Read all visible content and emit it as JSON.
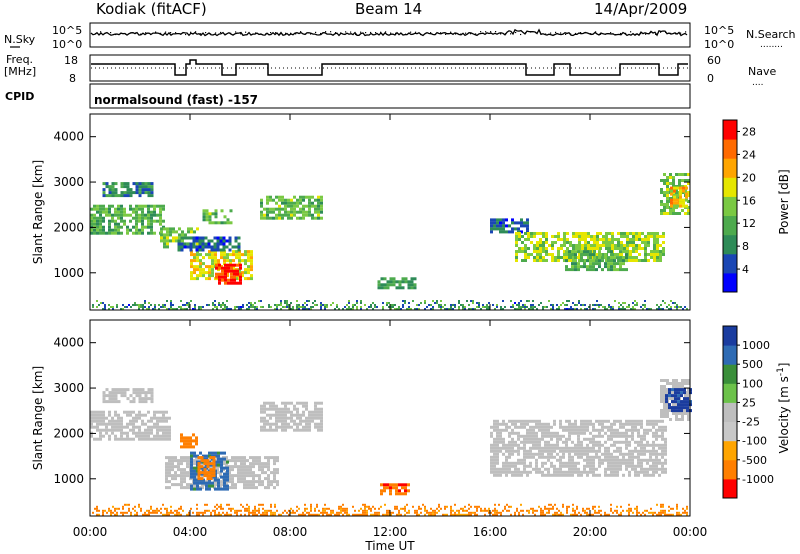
{
  "header": {
    "station": "Kodiak (fitACF)",
    "beam": "Beam 14",
    "date": "14/Apr/2009"
  },
  "strip_labels": {
    "nsky": "N.Sky",
    "nsearch": "N.Search",
    "nsearch_dots": "........",
    "freq_line1": "Freq.",
    "freq_line2": "[MHz]",
    "nave": "Nave",
    "nave_dots": "....",
    "cpid": "CPID",
    "cpid_value": "normalsound (fast) -157",
    "noise_ticks": [
      "10^5",
      "10^0"
    ],
    "noise_ticks_right": [
      "10^5",
      "10^0"
    ],
    "freq_ticks": [
      "18",
      "8"
    ],
    "nave_ticks": [
      "60",
      "0"
    ]
  },
  "colors": {
    "power_scale": [
      "#0000ff",
      "#1a46b4",
      "#2e8b57",
      "#4daa4d",
      "#7ac943",
      "#e6e600",
      "#ffa500",
      "#ff6a00",
      "#ff0000"
    ],
    "velocity_scale": [
      "#1a3c9f",
      "#2e6bb4",
      "#3a8f3a",
      "#6cc24a",
      "#bebebe",
      "#c8c8c8",
      "#ffa500",
      "#ff7f00",
      "#ff0000"
    ],
    "ground_scatter": "#bebebe"
  },
  "chart_data": [
    {
      "type": "heatmap",
      "name": "power",
      "xlabel": "Time UT",
      "ylabel": "Slant Range [km]",
      "x_ticks": [
        "00:00",
        "04:00",
        "08:00",
        "12:00",
        "16:00",
        "20:00",
        "00:00"
      ],
      "y_ticks": [
        "1000",
        "2000",
        "3000",
        "4000"
      ],
      "xlim": [
        0,
        24
      ],
      "ylim": [
        180,
        4500
      ],
      "colorbar": {
        "label": "Power [dB]",
        "ticks": [
          "4",
          "8",
          "12",
          "16",
          "20",
          "24",
          "28"
        ],
        "range": [
          0,
          30
        ]
      },
      "regions": [
        {
          "t0": 0.0,
          "t1": 3.0,
          "r0": 1900,
          "r1": 2500,
          "value": 12
        },
        {
          "t0": 0.5,
          "t1": 2.5,
          "r0": 2700,
          "r1": 3000,
          "value": 8
        },
        {
          "t0": 2.8,
          "t1": 4.3,
          "r0": 1600,
          "r1": 2000,
          "value": 14
        },
        {
          "t0": 4.0,
          "t1": 6.5,
          "r0": 900,
          "r1": 1500,
          "value": 18
        },
        {
          "t0": 5.0,
          "t1": 6.0,
          "r0": 800,
          "r1": 1200,
          "value": 28
        },
        {
          "t0": 3.5,
          "t1": 6.0,
          "r0": 1500,
          "r1": 1800,
          "value": 6
        },
        {
          "t0": 4.5,
          "t1": 5.6,
          "r0": 2100,
          "r1": 2400,
          "value": 13
        },
        {
          "t0": 6.8,
          "t1": 9.3,
          "r0": 2200,
          "r1": 2700,
          "value": 13
        },
        {
          "t0": 11.5,
          "t1": 13.0,
          "r0": 700,
          "r1": 900,
          "value": 10
        },
        {
          "t0": 16.0,
          "t1": 17.5,
          "r0": 1900,
          "r1": 2200,
          "value": 6
        },
        {
          "t0": 17.0,
          "t1": 23.0,
          "r0": 1300,
          "r1": 1900,
          "value": 16
        },
        {
          "t0": 19.0,
          "t1": 21.5,
          "r0": 1100,
          "r1": 1500,
          "value": 12
        },
        {
          "t0": 22.8,
          "t1": 24.0,
          "r0": 2300,
          "r1": 3200,
          "value": 14
        },
        {
          "t0": 23.2,
          "t1": 23.9,
          "r0": 2500,
          "r1": 2900,
          "value": 20
        }
      ],
      "near_range_band": {
        "r0": 200,
        "r1": 400,
        "value": 8
      }
    },
    {
      "type": "heatmap",
      "name": "velocity",
      "xlabel": "Time UT",
      "ylabel": "Slant Range [km]",
      "x_ticks": [
        "00:00",
        "04:00",
        "08:00",
        "12:00",
        "16:00",
        "20:00",
        "00:00"
      ],
      "y_ticks": [
        "1000",
        "2000",
        "3000",
        "4000"
      ],
      "xlim": [
        0,
        24
      ],
      "ylim": [
        180,
        4500
      ],
      "colorbar": {
        "label": "Velocity [m s^-1]",
        "ticks": [
          "1000",
          "500",
          "100",
          "25",
          "-25",
          "-100",
          "-500",
          "-1000"
        ]
      },
      "regions": [
        {
          "t0": 0.0,
          "t1": 3.2,
          "r0": 1900,
          "r1": 2500,
          "value": 0
        },
        {
          "t0": 0.5,
          "t1": 2.5,
          "r0": 2700,
          "r1": 3000,
          "value": 0
        },
        {
          "t0": 3.0,
          "t1": 7.5,
          "r0": 800,
          "r1": 1500,
          "value": 0
        },
        {
          "t0": 4.0,
          "t1": 5.5,
          "r0": 800,
          "r1": 1600,
          "value": 150
        },
        {
          "t0": 4.3,
          "t1": 5.0,
          "r0": 1000,
          "r1": 1500,
          "value": -200
        },
        {
          "t0": 3.6,
          "t1": 4.3,
          "r0": 1700,
          "r1": 2000,
          "value": -300
        },
        {
          "t0": 6.8,
          "t1": 9.3,
          "r0": 2100,
          "r1": 2700,
          "value": 0
        },
        {
          "t0": 11.6,
          "t1": 12.8,
          "r0": 700,
          "r1": 900,
          "value": -400
        },
        {
          "t0": 16.0,
          "t1": 23.0,
          "r0": 1100,
          "r1": 2300,
          "value": 0
        },
        {
          "t0": 22.8,
          "t1": 24.0,
          "r0": 2300,
          "r1": 3200,
          "value": 0
        },
        {
          "t0": 23.0,
          "t1": 24.0,
          "r0": 2500,
          "r1": 3000,
          "value": 700
        }
      ],
      "near_range_band": {
        "r0": 200,
        "r1": 450,
        "value": -150
      }
    }
  ]
}
